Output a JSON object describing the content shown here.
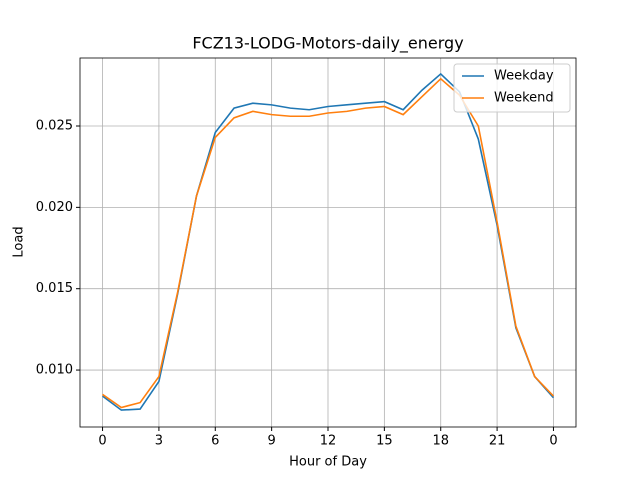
{
  "chart_data": {
    "type": "line",
    "title": "FCZ13-LODG-Motors-daily_energy",
    "x_label": "Hour of Day",
    "y_label": "Load",
    "x": [
      0,
      1,
      2,
      3,
      4,
      5,
      6,
      7,
      8,
      9,
      10,
      11,
      12,
      13,
      14,
      15,
      16,
      17,
      18,
      19,
      20,
      21,
      22,
      23,
      24
    ],
    "series": [
      {
        "name": "Weekday",
        "color": "#1f77b4",
        "values": [
          0.0084,
          0.00754,
          0.0076,
          0.0093,
          0.0147,
          0.0207,
          0.0246,
          0.0261,
          0.0264,
          0.0263,
          0.0261,
          0.026,
          0.0262,
          0.0263,
          0.0264,
          0.0265,
          0.026,
          0.0272,
          0.0282,
          0.0271,
          0.0242,
          0.0189,
          0.0126,
          0.0096,
          0.0083
        ]
      },
      {
        "name": "Weekend",
        "color": "#ff7f0e",
        "values": [
          0.0085,
          0.0077,
          0.008,
          0.0096,
          0.0148,
          0.0207,
          0.0243,
          0.0255,
          0.0259,
          0.0257,
          0.0256,
          0.0256,
          0.0258,
          0.0259,
          0.0261,
          0.0262,
          0.0257,
          0.0268,
          0.0279,
          0.0269,
          0.025,
          0.0191,
          0.0127,
          0.0096,
          0.0084
        ]
      }
    ],
    "xlim": [
      -1.2,
      25.2
    ],
    "xticks": [
      0,
      3,
      6,
      9,
      12,
      15,
      18,
      21,
      {
        "value": 24,
        "label": "0"
      }
    ],
    "ylim": [
      0.0065,
      0.02918
    ],
    "yticks": [
      {
        "value": 0.01,
        "label": "0.010"
      },
      {
        "value": 0.015,
        "label": "0.015"
      },
      {
        "value": 0.02,
        "label": "0.020"
      },
      {
        "value": 0.025,
        "label": "0.025"
      }
    ],
    "grid": true,
    "legend": "upper right"
  }
}
